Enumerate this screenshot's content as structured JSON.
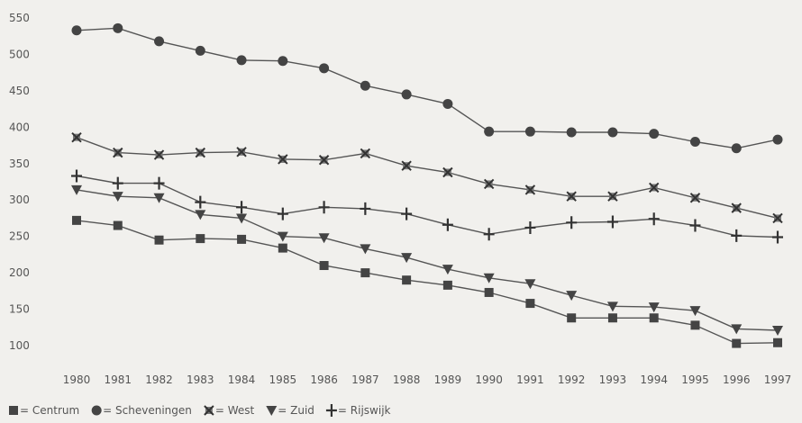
{
  "chart_data": {
    "type": "line",
    "title": "",
    "xlabel": "",
    "ylabel": "",
    "x": [
      "1980",
      "1981",
      "1982",
      "1983",
      "1984",
      "1985",
      "1986",
      "1987",
      "1988",
      "1989",
      "1990",
      "1991",
      "1992",
      "1993",
      "1994",
      "1995",
      "1996",
      "1997"
    ],
    "yticks": [
      100,
      150,
      200,
      250,
      300,
      350,
      400,
      450,
      500,
      550
    ],
    "ylim": [
      85,
      560
    ],
    "grid": false,
    "legend_position": "bottom-left",
    "series": [
      {
        "name": "Centrum",
        "marker": "square",
        "values": [
          272,
          265,
          245,
          247,
          246,
          234,
          210,
          200,
          190,
          183,
          173,
          158,
          138,
          138,
          138,
          128,
          103,
          104
        ]
      },
      {
        "name": "Scheveningen",
        "marker": "circle",
        "values": [
          533,
          536,
          518,
          505,
          492,
          491,
          481,
          457,
          445,
          432,
          394,
          394,
          393,
          393,
          391,
          380,
          371,
          383
        ]
      },
      {
        "name": "West",
        "marker": "cross",
        "values": [
          386,
          365,
          362,
          365,
          366,
          356,
          355,
          364,
          347,
          338,
          322,
          314,
          305,
          305,
          317,
          303,
          289,
          275
        ]
      },
      {
        "name": "Zuid",
        "marker": "triangle-down",
        "values": [
          314,
          305,
          303,
          280,
          275,
          250,
          248,
          233,
          221,
          205,
          193,
          185,
          169,
          154,
          153,
          148,
          123,
          121
        ]
      },
      {
        "name": "Rijswijk",
        "marker": "plus",
        "values": [
          333,
          323,
          323,
          297,
          290,
          281,
          290,
          288,
          281,
          266,
          253,
          262,
          269,
          270,
          274,
          265,
          251,
          249
        ]
      }
    ],
    "legend_entries": [
      {
        "symbol": "square",
        "text": " = Centrum"
      },
      {
        "symbol": "circle",
        "text": " = Scheveningen"
      },
      {
        "symbol": "cross",
        "text": " = West"
      },
      {
        "symbol": "triangle-down",
        "text": " = Zuid"
      },
      {
        "symbol": "plus",
        "text": " = Rijswijk"
      }
    ]
  }
}
